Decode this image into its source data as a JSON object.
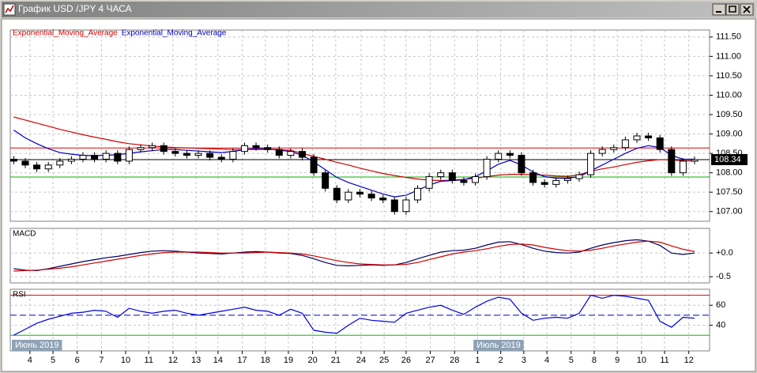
{
  "window": {
    "title": "График USD /JPY  4 ЧАСА"
  },
  "chart_data": [
    {
      "type": "candlestick",
      "xlim": [
        -0.3,
        60.3
      ],
      "xticks": [
        {
          "value": 1.4,
          "label": "4"
        },
        {
          "value": 3.4,
          "label": "5"
        },
        {
          "value": 5.5,
          "label": "6"
        },
        {
          "value": 7.6,
          "label": "7"
        },
        {
          "value": 9.7,
          "label": "10"
        },
        {
          "value": 11.7,
          "label": "11"
        },
        {
          "value": 13.8,
          "label": "12"
        },
        {
          "value": 15.8,
          "label": "13"
        },
        {
          "value": 17.7,
          "label": "14"
        },
        {
          "value": 19.8,
          "label": "17"
        },
        {
          "value": 21.8,
          "label": "18"
        },
        {
          "value": 23.8,
          "label": "19"
        },
        {
          "value": 25.9,
          "label": "20"
        },
        {
          "value": 27.9,
          "label": "21"
        },
        {
          "value": 30.1,
          "label": "24"
        },
        {
          "value": 32.1,
          "label": "25"
        },
        {
          "value": 34.0,
          "label": "26"
        },
        {
          "value": 36.1,
          "label": "27"
        },
        {
          "value": 38.2,
          "label": "28"
        },
        {
          "value": 40.2,
          "label": "1"
        },
        {
          "value": 42.2,
          "label": "2"
        },
        {
          "value": 44.2,
          "label": "3"
        },
        {
          "value": 46.2,
          "label": "4"
        },
        {
          "value": 48.3,
          "label": "5"
        },
        {
          "value": 50.3,
          "label": "8"
        },
        {
          "value": 52.3,
          "label": "9"
        },
        {
          "value": 54.4,
          "label": "10"
        },
        {
          "value": 56.4,
          "label": "11"
        },
        {
          "value": 58.5,
          "label": "12"
        }
      ],
      "month_labels": [
        {
          "value": -0.3,
          "label": "Июнь 2019"
        },
        {
          "value": 39.7,
          "label": "Июль 2019"
        }
      ],
      "ylim": [
        106.75,
        111.68
      ],
      "yticks": [
        {
          "value": 107,
          "label": "107.00"
        },
        {
          "value": 107.5,
          "label": "107.50"
        },
        {
          "value": 108,
          "label": "108.00"
        },
        {
          "value": 108.5,
          "label": "108.50"
        },
        {
          "value": 109,
          "label": "109.00"
        },
        {
          "value": 109.5,
          "label": "109.50"
        },
        {
          "value": 110,
          "label": "110.00"
        },
        {
          "value": 110.5,
          "label": "110.50"
        },
        {
          "value": 111,
          "label": "111.00"
        },
        {
          "value": 111.5,
          "label": "111.50"
        }
      ],
      "grid": true,
      "open": [
        108.35,
        108.3,
        108.2,
        108.1,
        108.2,
        108.3,
        108.35,
        108.45,
        108.35,
        108.5,
        108.3,
        108.6,
        108.65,
        108.7,
        108.55,
        108.5,
        108.45,
        108.5,
        108.4,
        108.35,
        108.55,
        108.7,
        108.65,
        108.6,
        108.45,
        108.55,
        108.4,
        108.0,
        107.6,
        107.3,
        107.5,
        107.45,
        107.35,
        107.3,
        107.0,
        107.3,
        107.6,
        107.9,
        108.0,
        107.8,
        107.75,
        107.9,
        108.35,
        108.5,
        108.45,
        108.0,
        107.75,
        107.7,
        107.8,
        107.85,
        107.95,
        108.5,
        108.6,
        108.65,
        108.85,
        108.95,
        108.9,
        108.6,
        108.0,
        108.3
      ],
      "high": [
        108.43,
        108.38,
        108.28,
        108.28,
        108.38,
        108.43,
        108.53,
        108.53,
        108.58,
        108.58,
        108.68,
        108.73,
        108.78,
        108.78,
        108.63,
        108.58,
        108.58,
        108.58,
        108.48,
        108.63,
        108.78,
        108.78,
        108.73,
        108.68,
        108.63,
        108.63,
        108.48,
        108.08,
        107.68,
        107.58,
        107.58,
        107.53,
        107.43,
        107.38,
        107.38,
        107.68,
        107.98,
        108.08,
        108.08,
        107.88,
        107.98,
        108.43,
        108.58,
        108.58,
        108.53,
        108.08,
        107.83,
        107.88,
        107.93,
        108.03,
        108.58,
        108.68,
        108.73,
        108.93,
        109.03,
        109.03,
        108.98,
        108.68,
        108.38,
        108.42
      ],
      "low": [
        108.22,
        108.12,
        108.02,
        108.02,
        108.12,
        108.22,
        108.27,
        108.27,
        108.27,
        108.22,
        108.22,
        108.52,
        108.57,
        108.47,
        108.42,
        108.37,
        108.37,
        108.32,
        108.27,
        108.27,
        108.47,
        108.57,
        108.52,
        108.37,
        108.37,
        108.32,
        107.92,
        107.52,
        107.22,
        107.22,
        107.37,
        107.27,
        107.22,
        106.92,
        106.92,
        107.22,
        107.52,
        107.82,
        107.72,
        107.67,
        107.67,
        107.82,
        108.27,
        108.37,
        107.92,
        107.67,
        107.62,
        107.62,
        107.72,
        107.77,
        107.87,
        108.42,
        108.52,
        108.57,
        108.77,
        108.82,
        108.52,
        107.92,
        107.92,
        108.22
      ],
      "close": [
        108.3,
        108.2,
        108.1,
        108.2,
        108.3,
        108.35,
        108.45,
        108.35,
        108.5,
        108.3,
        108.6,
        108.65,
        108.7,
        108.55,
        108.5,
        108.45,
        108.5,
        108.4,
        108.35,
        108.55,
        108.7,
        108.65,
        108.6,
        108.45,
        108.55,
        108.4,
        108.0,
        107.6,
        107.3,
        107.5,
        107.45,
        107.35,
        107.3,
        107.0,
        107.3,
        107.6,
        107.9,
        108.0,
        107.8,
        107.75,
        107.9,
        108.35,
        108.5,
        108.45,
        108.0,
        107.75,
        107.7,
        107.8,
        107.85,
        107.95,
        108.5,
        108.6,
        108.65,
        108.85,
        108.95,
        108.9,
        108.6,
        108.0,
        108.3,
        108.34
      ],
      "series": [
        {
          "name": "Exponential_Moving_Average",
          "color": "#d00000",
          "values": [
            109.44,
            109.36,
            109.28,
            109.2,
            109.12,
            109.05,
            108.98,
            108.92,
            108.86,
            108.8,
            108.75,
            108.72,
            108.69,
            108.67,
            108.65,
            108.64,
            108.63,
            108.62,
            108.61,
            108.6,
            108.6,
            108.6,
            108.6,
            108.6,
            108.58,
            108.5,
            108.42,
            108.35,
            108.27,
            108.2,
            108.12,
            108.05,
            107.98,
            107.93,
            107.88,
            107.84,
            107.81,
            107.8,
            107.81,
            107.83,
            107.86,
            107.9,
            107.94,
            107.96,
            107.96,
            107.95,
            107.94,
            107.92,
            107.91,
            107.95,
            108.04,
            108.1,
            108.15,
            108.21,
            108.27,
            108.31,
            108.34,
            108.33,
            108.31,
            108.3
          ]
        },
        {
          "name": "Exponential_Moving_Average",
          "color": "#0000c0",
          "values": [
            109.1,
            108.9,
            108.75,
            108.62,
            108.52,
            108.48,
            108.45,
            108.44,
            108.45,
            108.47,
            108.5,
            108.54,
            108.57,
            108.6,
            108.6,
            108.58,
            108.56,
            108.54,
            108.52,
            108.55,
            108.6,
            108.62,
            108.62,
            108.58,
            108.55,
            108.45,
            108.28,
            108.08,
            107.88,
            107.75,
            107.65,
            107.55,
            107.45,
            107.38,
            107.42,
            107.55,
            107.68,
            107.78,
            107.8,
            107.82,
            107.9,
            108.05,
            108.22,
            108.32,
            108.2,
            108.02,
            107.9,
            107.86,
            107.86,
            107.9,
            108.05,
            108.2,
            108.35,
            108.5,
            108.63,
            108.7,
            108.65,
            108.45,
            108.35,
            108.35
          ]
        }
      ],
      "levels": [
        {
          "value": 108.64,
          "color": "#e00000"
        },
        {
          "value": 108.34,
          "color": "#000000"
        },
        {
          "value": 107.89,
          "color": "#00b000"
        }
      ]
    },
    {
      "type": "macd",
      "label": "MACD",
      "ylim": [
        -0.63,
        0.52
      ],
      "yticks": [
        {
          "value": -0.5,
          "label": "-0.5"
        },
        {
          "value": 0,
          "label": "+0.0"
        }
      ],
      "grid": true,
      "series": [
        {
          "color": "#000060",
          "values": [
            -0.33,
            -0.36,
            -0.37,
            -0.33,
            -0.28,
            -0.23,
            -0.18,
            -0.14,
            -0.1,
            -0.07,
            -0.03,
            0.01,
            0.04,
            0.05,
            0.04,
            0.02,
            0.0,
            -0.01,
            -0.02,
            0.0,
            0.02,
            0.03,
            0.02,
            0.0,
            -0.01,
            -0.05,
            -0.12,
            -0.2,
            -0.26,
            -0.27,
            -0.26,
            -0.25,
            -0.26,
            -0.25,
            -0.2,
            -0.12,
            -0.05,
            0.02,
            0.05,
            0.06,
            0.1,
            0.17,
            0.23,
            0.24,
            0.18,
            0.1,
            0.04,
            0.01,
            0.0,
            0.02,
            0.1,
            0.17,
            0.22,
            0.26,
            0.28,
            0.25,
            0.16,
            0.0,
            -0.03,
            0.0
          ]
        },
        {
          "color": "#d00000",
          "values": [
            -0.38,
            -0.37,
            -0.36,
            -0.34,
            -0.32,
            -0.29,
            -0.25,
            -0.21,
            -0.17,
            -0.13,
            -0.09,
            -0.05,
            -0.02,
            0.01,
            0.02,
            0.02,
            0.02,
            0.01,
            0.0,
            0.0,
            0.0,
            0.01,
            0.02,
            0.01,
            0.0,
            -0.02,
            -0.06,
            -0.11,
            -0.16,
            -0.2,
            -0.23,
            -0.24,
            -0.25,
            -0.25,
            -0.24,
            -0.2,
            -0.14,
            -0.08,
            -0.02,
            0.02,
            0.05,
            0.09,
            0.14,
            0.18,
            0.19,
            0.17,
            0.12,
            0.08,
            0.05,
            0.04,
            0.06,
            0.1,
            0.15,
            0.19,
            0.23,
            0.25,
            0.23,
            0.15,
            0.08,
            0.03
          ]
        }
      ]
    },
    {
      "type": "rsi",
      "label": "RSI",
      "ylim": [
        14.4,
        76
      ],
      "yticks": [
        40,
        60
      ],
      "grid": true,
      "levels": [
        {
          "value": 70,
          "color": "#e00000",
          "style": "solid"
        },
        {
          "value": 50,
          "color": "#0000c0",
          "style": "dashed"
        },
        {
          "value": 30,
          "color": "#00c000",
          "style": "solid"
        }
      ],
      "series": [
        {
          "color": "#0000e0",
          "values": [
            30,
            36,
            42,
            46,
            49,
            52,
            53,
            55,
            54,
            48,
            57,
            54,
            52,
            54,
            55,
            52,
            50,
            52,
            54,
            56,
            58,
            55,
            54,
            50,
            56,
            52,
            35,
            33,
            32,
            40,
            47,
            45,
            44,
            43,
            52,
            55,
            58,
            60,
            55,
            51,
            58,
            64,
            68,
            66,
            52,
            45,
            47,
            48,
            47,
            52,
            70,
            67,
            70,
            69,
            67,
            65,
            44,
            38,
            48,
            47
          ]
        }
      ]
    }
  ]
}
